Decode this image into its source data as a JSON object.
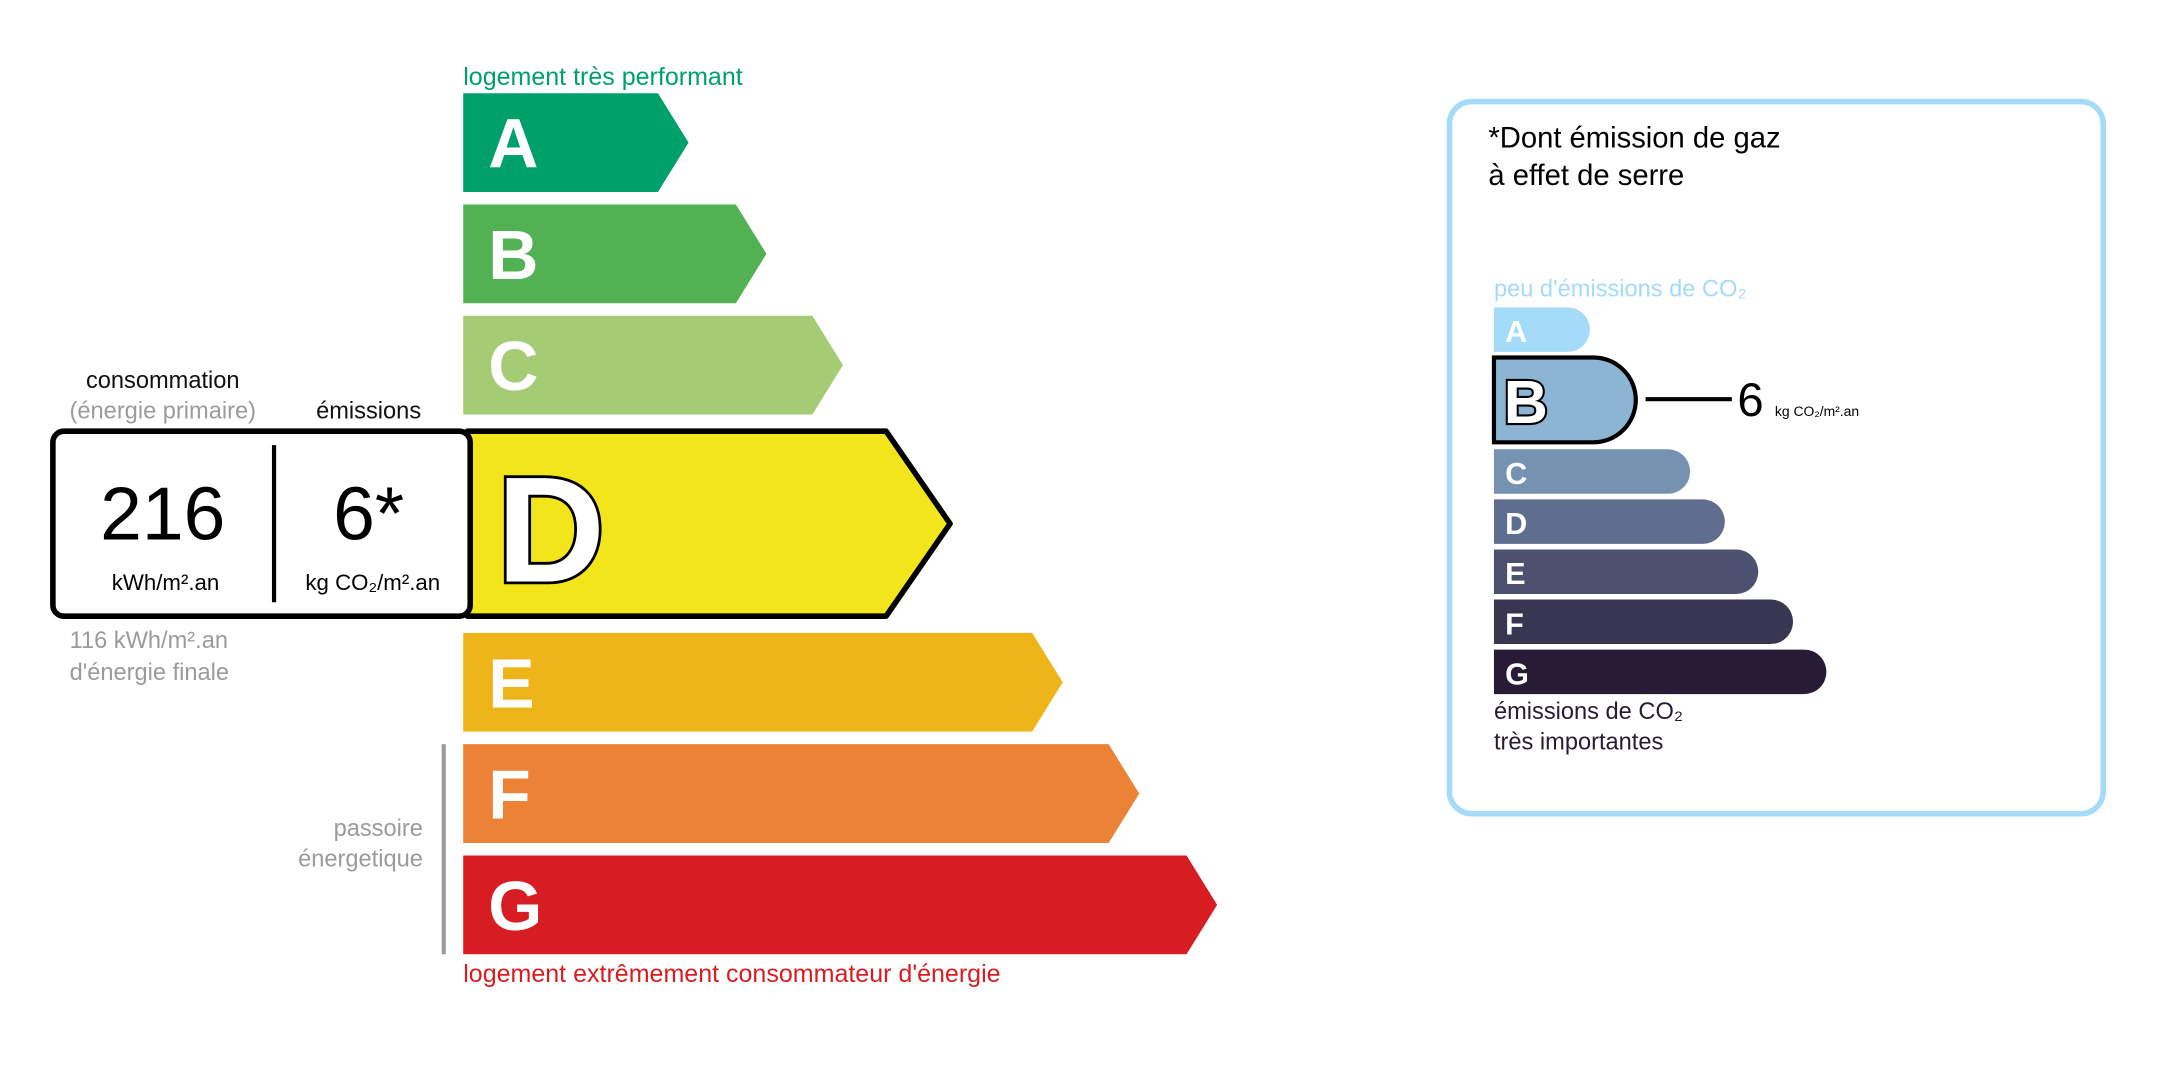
{
  "energy": {
    "top_label": "logement très performant",
    "bottom_label": "logement extrêmement consommateur d'énergie",
    "passoire_line1": "passoire",
    "passoire_line2": "énergetique",
    "consumption_label": "consommation",
    "consumption_sublabel": "(énergie primaire)",
    "emissions_label": "émissions",
    "consumption_value": "216",
    "consumption_unit": "kWh/m².an",
    "emissions_value": "6*",
    "emissions_unit": "kg CO₂/m².an",
    "final_energy_value": "116 kWh/m².an",
    "final_energy_label": "d'énergie finale",
    "current_class": "D",
    "classes": [
      {
        "letter": "A",
        "color": "#00a06a"
      },
      {
        "letter": "B",
        "color": "#52b153"
      },
      {
        "letter": "C",
        "color": "#a5cc74"
      },
      {
        "letter": "D",
        "color": "#f2e51b"
      },
      {
        "letter": "E",
        "color": "#eeb51a"
      },
      {
        "letter": "F",
        "color": "#eb8235"
      },
      {
        "letter": "G",
        "color": "#d71d21"
      }
    ],
    "colors": {
      "top_label": "#00a06a",
      "bottom_label": "#d71d21",
      "muted": "#9b9b9b"
    }
  },
  "ghg": {
    "title_line1": "*Dont émission de gaz",
    "title_line2": "à effet de serre",
    "top_label": "peu d'émissions de CO₂",
    "bottom_label_line1": "émissions de CO₂",
    "bottom_label_line2": "très importantes",
    "current_class": "B",
    "value": "6",
    "unit": "kg CO₂/m².an",
    "classes": [
      {
        "letter": "A",
        "color": "#a4dbf8"
      },
      {
        "letter": "B",
        "color": "#8cb4d3"
      },
      {
        "letter": "C",
        "color": "#7593b1"
      },
      {
        "letter": "D",
        "color": "#5f6e8e"
      },
      {
        "letter": "E",
        "color": "#4d5170"
      },
      {
        "letter": "F",
        "color": "#393651"
      },
      {
        "letter": "G",
        "color": "#281b35"
      }
    ],
    "colors": {
      "border": "#a4dbf8",
      "top_label": "#a4dbf8",
      "text": "#281b35"
    }
  }
}
